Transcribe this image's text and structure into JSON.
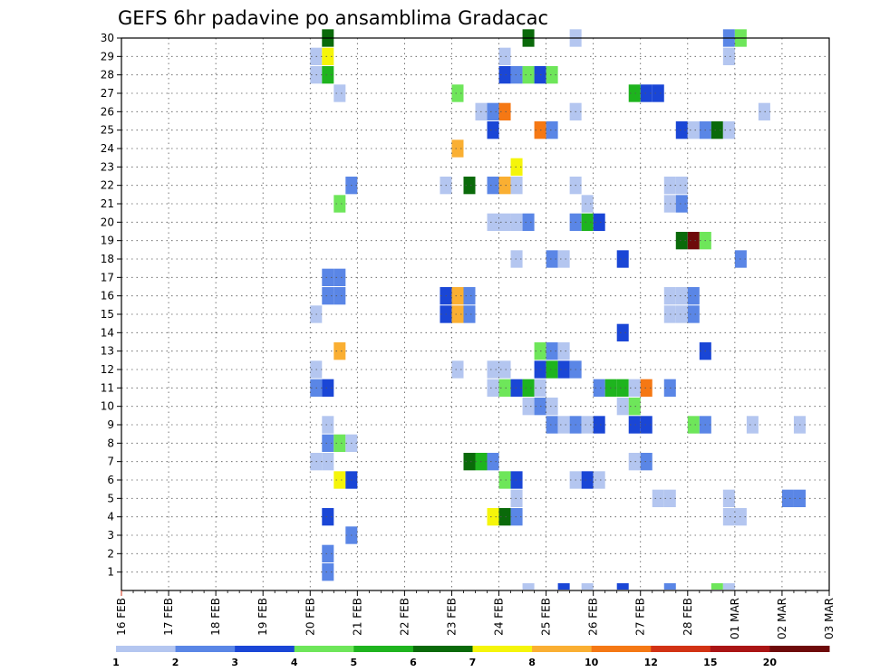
{
  "chart_data": {
    "type": "heatmap",
    "title": "GEFS 6hr padavine po ansamblima Gradacac",
    "xlabel": "",
    "ylabel": "",
    "x_ticks": [
      "16 FEB",
      "17 FEB",
      "18 FEB",
      "19 FEB",
      "20 FEB",
      "21 FEB",
      "22 FEB",
      "23 FEB",
      "24 FEB",
      "25 FEB",
      "26 FEB",
      "27 FEB",
      "28 FEB",
      "01 MAR",
      "02 MAR",
      "03 MAR"
    ],
    "y_ticks": [
      "1",
      "2",
      "3",
      "4",
      "5",
      "6",
      "7",
      "8",
      "9",
      "10",
      "11",
      "12",
      "13",
      "14",
      "15",
      "16",
      "17",
      "18",
      "19",
      "20",
      "21",
      "22",
      "23",
      "24",
      "25",
      "26",
      "27",
      "28",
      "29",
      "30"
    ],
    "xlim": [
      0,
      15
    ],
    "ylim": [
      0,
      30
    ],
    "grid": true,
    "legend": {
      "placement": "bottom",
      "labels": [
        "1",
        "2",
        "3",
        "4",
        "5",
        "6",
        "7",
        "8",
        "10",
        "12",
        "15",
        "20"
      ],
      "colors": [
        "#b4c6f0",
        "#5a86e6",
        "#1a46d6",
        "#6ee65a",
        "#1eb41e",
        "#0a6a0a",
        "#f5f50a",
        "#faaf32",
        "#f57814",
        "#d23214",
        "#aa1414",
        "#6e0a0a"
      ]
    },
    "series": [
      {
        "member": 30,
        "cells": [
          [
            4.375,
            6
          ],
          [
            8.625,
            6
          ],
          [
            9.625,
            1
          ],
          [
            12.875,
            2
          ],
          [
            13.125,
            4
          ]
        ]
      },
      {
        "member": 29,
        "cells": [
          [
            4.125,
            1
          ],
          [
            4.375,
            7
          ],
          [
            8.125,
            1
          ],
          [
            12.875,
            1
          ]
        ]
      },
      {
        "member": 28,
        "cells": [
          [
            4.125,
            1
          ],
          [
            4.375,
            5
          ],
          [
            8.125,
            3
          ],
          [
            8.375,
            2
          ],
          [
            8.625,
            4
          ],
          [
            8.875,
            3
          ],
          [
            9.125,
            4
          ]
        ]
      },
      {
        "member": 27,
        "cells": [
          [
            4.625,
            1
          ],
          [
            7.125,
            4
          ],
          [
            10.875,
            5
          ],
          [
            11.125,
            3
          ],
          [
            11.375,
            3
          ]
        ]
      },
      {
        "member": 26,
        "cells": [
          [
            7.625,
            1
          ],
          [
            7.875,
            2
          ],
          [
            8.125,
            9
          ],
          [
            9.625,
            1
          ],
          [
            13.625,
            1
          ]
        ]
      },
      {
        "member": 25,
        "cells": [
          [
            7.875,
            3
          ],
          [
            8.875,
            9
          ],
          [
            9.125,
            2
          ],
          [
            11.875,
            3
          ],
          [
            12.125,
            1
          ],
          [
            12.375,
            2
          ],
          [
            12.625,
            6
          ],
          [
            12.875,
            1
          ]
        ]
      },
      {
        "member": 24,
        "cells": [
          [
            7.125,
            8
          ]
        ]
      },
      {
        "member": 23,
        "cells": [
          [
            8.375,
            7
          ]
        ]
      },
      {
        "member": 22,
        "cells": [
          [
            4.875,
            2
          ],
          [
            6.875,
            1
          ],
          [
            7.375,
            6
          ],
          [
            7.875,
            2
          ],
          [
            8.125,
            8
          ],
          [
            8.375,
            1
          ],
          [
            9.625,
            1
          ],
          [
            11.625,
            1
          ],
          [
            11.875,
            1
          ]
        ]
      },
      {
        "member": 21,
        "cells": [
          [
            4.625,
            4
          ],
          [
            9.875,
            1
          ],
          [
            11.625,
            1
          ],
          [
            11.875,
            2
          ]
        ]
      },
      {
        "member": 20,
        "cells": [
          [
            7.875,
            1
          ],
          [
            8.125,
            1
          ],
          [
            8.375,
            1
          ],
          [
            8.625,
            2
          ],
          [
            9.625,
            2
          ],
          [
            9.875,
            5
          ],
          [
            10.125,
            3
          ]
        ]
      },
      {
        "member": 19,
        "cells": [
          [
            11.875,
            6
          ],
          [
            12.125,
            12
          ],
          [
            12.375,
            4
          ]
        ]
      },
      {
        "member": 18,
        "cells": [
          [
            8.375,
            1
          ],
          [
            9.125,
            2
          ],
          [
            9.375,
            1
          ],
          [
            10.625,
            3
          ],
          [
            13.125,
            2
          ]
        ]
      },
      {
        "member": 17,
        "cells": [
          [
            4.375,
            2
          ],
          [
            4.625,
            2
          ]
        ]
      },
      {
        "member": 16,
        "cells": [
          [
            4.375,
            2
          ],
          [
            4.625,
            2
          ],
          [
            6.875,
            3
          ],
          [
            7.125,
            8
          ],
          [
            7.375,
            2
          ],
          [
            11.625,
            1
          ],
          [
            11.875,
            1
          ],
          [
            12.125,
            2
          ]
        ]
      },
      {
        "member": 15,
        "cells": [
          [
            4.125,
            1
          ],
          [
            6.875,
            3
          ],
          [
            7.125,
            8
          ],
          [
            7.375,
            2
          ],
          [
            11.625,
            1
          ],
          [
            11.875,
            1
          ],
          [
            12.125,
            2
          ]
        ]
      },
      {
        "member": 14,
        "cells": [
          [
            10.625,
            3
          ]
        ]
      },
      {
        "member": 13,
        "cells": [
          [
            4.625,
            8
          ],
          [
            8.875,
            4
          ],
          [
            9.125,
            2
          ],
          [
            9.375,
            1
          ],
          [
            12.375,
            3
          ]
        ]
      },
      {
        "member": 12,
        "cells": [
          [
            4.125,
            1
          ],
          [
            7.125,
            1
          ],
          [
            7.875,
            1
          ],
          [
            8.125,
            1
          ],
          [
            8.875,
            3
          ],
          [
            9.125,
            5
          ],
          [
            9.375,
            3
          ],
          [
            9.625,
            2
          ]
        ]
      },
      {
        "member": 11,
        "cells": [
          [
            4.125,
            2
          ],
          [
            4.375,
            3
          ],
          [
            7.875,
            1
          ],
          [
            8.125,
            4
          ],
          [
            8.375,
            3
          ],
          [
            8.625,
            5
          ],
          [
            8.875,
            1
          ],
          [
            10.125,
            2
          ],
          [
            10.375,
            5
          ],
          [
            10.625,
            5
          ],
          [
            10.875,
            1
          ],
          [
            11.125,
            9
          ],
          [
            11.625,
            2
          ]
        ]
      },
      {
        "member": 10,
        "cells": [
          [
            8.625,
            1
          ],
          [
            8.875,
            2
          ],
          [
            9.125,
            1
          ],
          [
            10.625,
            1
          ],
          [
            10.875,
            4
          ]
        ]
      },
      {
        "member": 9,
        "cells": [
          [
            4.375,
            1
          ],
          [
            9.125,
            2
          ],
          [
            9.375,
            1
          ],
          [
            9.625,
            2
          ],
          [
            9.875,
            1
          ],
          [
            10.125,
            3
          ],
          [
            10.875,
            3
          ],
          [
            11.125,
            3
          ],
          [
            12.125,
            4
          ],
          [
            12.375,
            2
          ],
          [
            13.375,
            1
          ],
          [
            14.375,
            1
          ]
        ]
      },
      {
        "member": 8,
        "cells": [
          [
            4.375,
            2
          ],
          [
            4.625,
            4
          ],
          [
            4.875,
            1
          ]
        ]
      },
      {
        "member": 7,
        "cells": [
          [
            4.125,
            1
          ],
          [
            4.375,
            1
          ],
          [
            7.375,
            6
          ],
          [
            7.625,
            5
          ],
          [
            7.875,
            2
          ],
          [
            10.875,
            1
          ],
          [
            11.125,
            2
          ]
        ]
      },
      {
        "member": 6,
        "cells": [
          [
            4.625,
            7
          ],
          [
            4.875,
            3
          ],
          [
            8.125,
            4
          ],
          [
            8.375,
            3
          ],
          [
            9.625,
            1
          ],
          [
            9.875,
            3
          ],
          [
            10.125,
            1
          ]
        ]
      },
      {
        "member": 5,
        "cells": [
          [
            8.375,
            1
          ],
          [
            11.375,
            1
          ],
          [
            11.625,
            1
          ],
          [
            12.875,
            1
          ],
          [
            14.125,
            2
          ],
          [
            14.375,
            2
          ]
        ]
      },
      {
        "member": 4,
        "cells": [
          [
            4.375,
            3
          ],
          [
            7.875,
            7
          ],
          [
            8.125,
            6
          ],
          [
            8.375,
            2
          ],
          [
            12.875,
            1
          ],
          [
            13.125,
            1
          ]
        ]
      },
      {
        "member": 3,
        "cells": [
          [
            4.875,
            2
          ]
        ]
      },
      {
        "member": 2,
        "cells": [
          [
            4.375,
            2
          ]
        ]
      },
      {
        "member": 1,
        "cells": [
          [
            4.375,
            2
          ]
        ]
      },
      {
        "member": 0,
        "cells": [
          [
            8.625,
            1
          ],
          [
            9.375,
            3
          ],
          [
            9.875,
            1
          ],
          [
            10.625,
            3
          ],
          [
            11.625,
            2
          ],
          [
            12.625,
            4
          ],
          [
            12.875,
            1
          ]
        ]
      }
    ]
  }
}
